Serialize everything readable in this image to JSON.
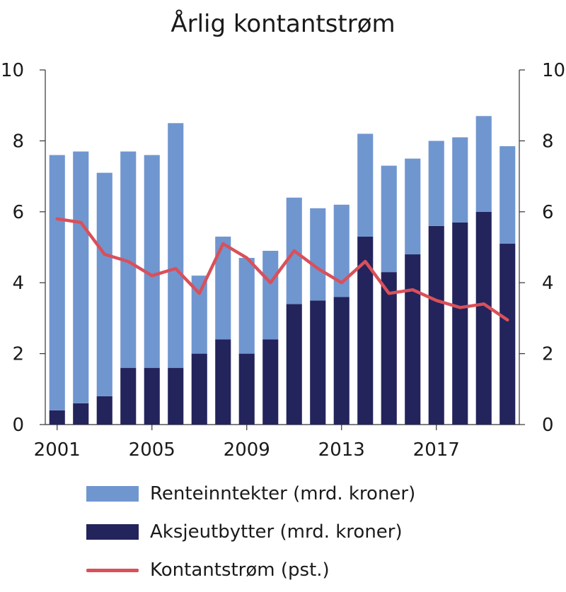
{
  "chart_data": {
    "type": "bar",
    "title": "Årlig kontantstrøm",
    "years": [
      2001,
      2002,
      2003,
      2004,
      2005,
      2006,
      2007,
      2008,
      2009,
      2010,
      2011,
      2012,
      2013,
      2014,
      2015,
      2016,
      2017,
      2018,
      2019,
      2020
    ],
    "x_tick_labels": [
      "2001",
      "2005",
      "2009",
      "2013",
      "2017"
    ],
    "x_tick_years": [
      2001,
      2005,
      2009,
      2013,
      2017
    ],
    "y_ticks": [
      "0",
      "2",
      "4",
      "6",
      "8",
      "10"
    ],
    "ylim": [
      0,
      10
    ],
    "stacked": true,
    "series": [
      {
        "name": "Aksjeutbytter (mrd. kroner)",
        "kind": "bar",
        "color": "#23245c",
        "values": [
          0.4,
          0.6,
          0.8,
          1.6,
          1.6,
          1.6,
          2.0,
          2.4,
          2.0,
          2.4,
          3.4,
          3.5,
          3.6,
          5.3,
          4.3,
          4.8,
          5.6,
          5.7,
          6.0,
          5.1
        ]
      },
      {
        "name": "Renteinntekter (mrd. kroner)",
        "kind": "bar",
        "color": "#7096d0",
        "values": [
          7.2,
          7.1,
          6.3,
          6.1,
          6.0,
          6.9,
          2.2,
          2.9,
          2.7,
          2.5,
          3.0,
          2.6,
          2.6,
          2.9,
          3.0,
          2.7,
          2.4,
          2.4,
          2.7,
          2.75
        ]
      },
      {
        "name": "Kontantstrøm (pst.)",
        "kind": "line",
        "color": "#d9505a",
        "values": [
          5.8,
          5.7,
          4.8,
          4.6,
          4.2,
          4.4,
          3.7,
          5.1,
          4.7,
          4.0,
          4.9,
          4.4,
          4.0,
          4.6,
          3.7,
          3.8,
          3.5,
          3.3,
          3.4,
          2.95
        ]
      }
    ],
    "legend": [
      {
        "label": "Renteinntekter (mrd. kroner)",
        "kind": "bar",
        "color": "#7096d0"
      },
      {
        "label": "Aksjeutbytter (mrd. kroner)",
        "kind": "bar",
        "color": "#23245c"
      },
      {
        "label": "Kontantstrøm (pst.)",
        "kind": "line",
        "color": "#d9505a"
      }
    ],
    "legend_position": "bottom",
    "grid": false
  }
}
